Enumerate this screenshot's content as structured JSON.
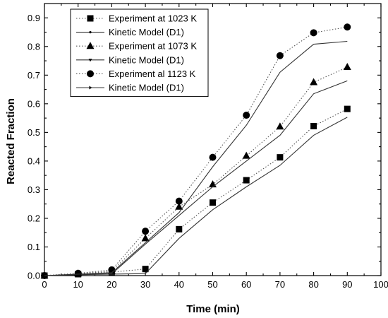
{
  "chart_data": {
    "type": "line",
    "xlabel": "Time (min)",
    "ylabel": "Reacted Fraction",
    "xlim": [
      0,
      100
    ],
    "ylim": [
      0,
      0.95
    ],
    "xticks": [
      0,
      10,
      20,
      30,
      40,
      50,
      60,
      70,
      80,
      90,
      100
    ],
    "yticks": [
      0.0,
      0.1,
      0.2,
      0.3,
      0.4,
      0.5,
      0.6,
      0.7,
      0.8,
      0.9
    ],
    "xtick_labels": [
      "0",
      "10",
      "20",
      "30",
      "40",
      "50",
      "60",
      "70",
      "80",
      "90",
      "100"
    ],
    "ytick_labels": [
      "0.0",
      "0.1",
      "0.2",
      "0.3",
      "0.4",
      "0.5",
      "0.6",
      "0.7",
      "0.8",
      "0.9"
    ],
    "x": [
      0,
      10,
      20,
      30,
      40,
      50,
      60,
      70,
      80,
      90
    ],
    "grid": false,
    "legend_position": "top-left",
    "series": [
      {
        "name": "Experiment at 1023 K",
        "style": "dotted",
        "marker": "square",
        "values": [
          0.0,
          0.005,
          0.012,
          0.023,
          0.162,
          0.255,
          0.333,
          0.413,
          0.522,
          0.582
        ]
      },
      {
        "name": "Kinetic Model (D1)",
        "style": "solid",
        "marker": "dot",
        "values": [
          0.0,
          0.003,
          0.005,
          0.007,
          0.13,
          0.23,
          0.31,
          0.385,
          0.49,
          0.553
        ]
      },
      {
        "name": "Experiment at 1073 K",
        "style": "dotted",
        "marker": "triangle-up",
        "values": [
          0.0,
          0.007,
          0.015,
          0.13,
          0.24,
          0.318,
          0.418,
          0.52,
          0.675,
          0.728
        ]
      },
      {
        "name": "Kinetic Model (D1)",
        "style": "solid",
        "marker": "triangle-down-small",
        "values": [
          0.0,
          0.004,
          0.006,
          0.11,
          0.21,
          0.31,
          0.4,
          0.49,
          0.635,
          0.68
        ]
      },
      {
        "name": "Experiment al 1123 K",
        "style": "dotted",
        "marker": "circle",
        "values": [
          0.0,
          0.008,
          0.02,
          0.155,
          0.26,
          0.413,
          0.56,
          0.768,
          0.848,
          0.868
        ]
      },
      {
        "name": "Kinetic Model (D1)",
        "style": "solid",
        "marker": "triangle-right-small",
        "values": [
          0.0,
          0.005,
          0.01,
          0.115,
          0.22,
          0.38,
          0.525,
          0.71,
          0.808,
          0.818
        ]
      }
    ]
  }
}
